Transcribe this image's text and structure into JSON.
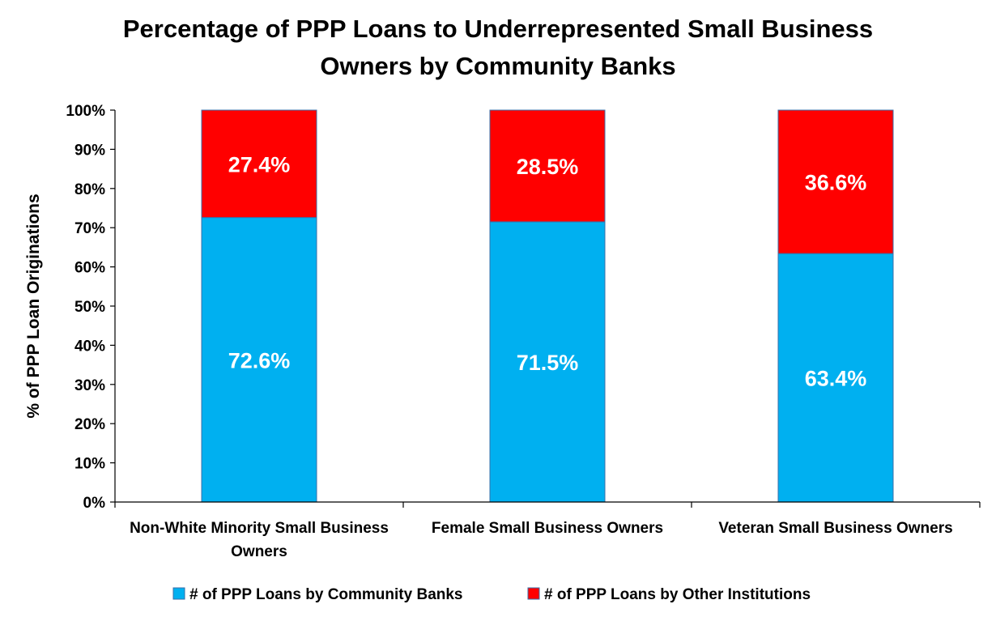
{
  "chart_data": {
    "type": "bar",
    "stacked": true,
    "title_lines": [
      "Percentage of PPP Loans to Underrepresented Small Business",
      "Owners by Community Banks"
    ],
    "ylabel": "% of PPP Loan Originations",
    "xlabel": "",
    "ylim": [
      0,
      100
    ],
    "y_ticks": [
      "0%",
      "10%",
      "20%",
      "30%",
      "40%",
      "50%",
      "60%",
      "70%",
      "80%",
      "90%",
      "100%"
    ],
    "categories": [
      [
        "Non-White Minority Small Business",
        "Owners"
      ],
      [
        "Female Small Business Owners"
      ],
      [
        "Veteran Small Business Owners"
      ]
    ],
    "series": [
      {
        "name": "# of PPP Loans by Community Banks",
        "color": "#00B0F0",
        "values": [
          72.6,
          71.5,
          63.4
        ],
        "labels": [
          "72.6%",
          "71.5%",
          "63.4%"
        ]
      },
      {
        "name": "# of PPP Loans by Other Institutions",
        "color": "#FF0000",
        "values": [
          27.4,
          28.5,
          36.6
        ],
        "labels": [
          "27.4%",
          "28.5%",
          "36.6%"
        ]
      }
    ],
    "legend_position": "bottom",
    "grid": false
  }
}
